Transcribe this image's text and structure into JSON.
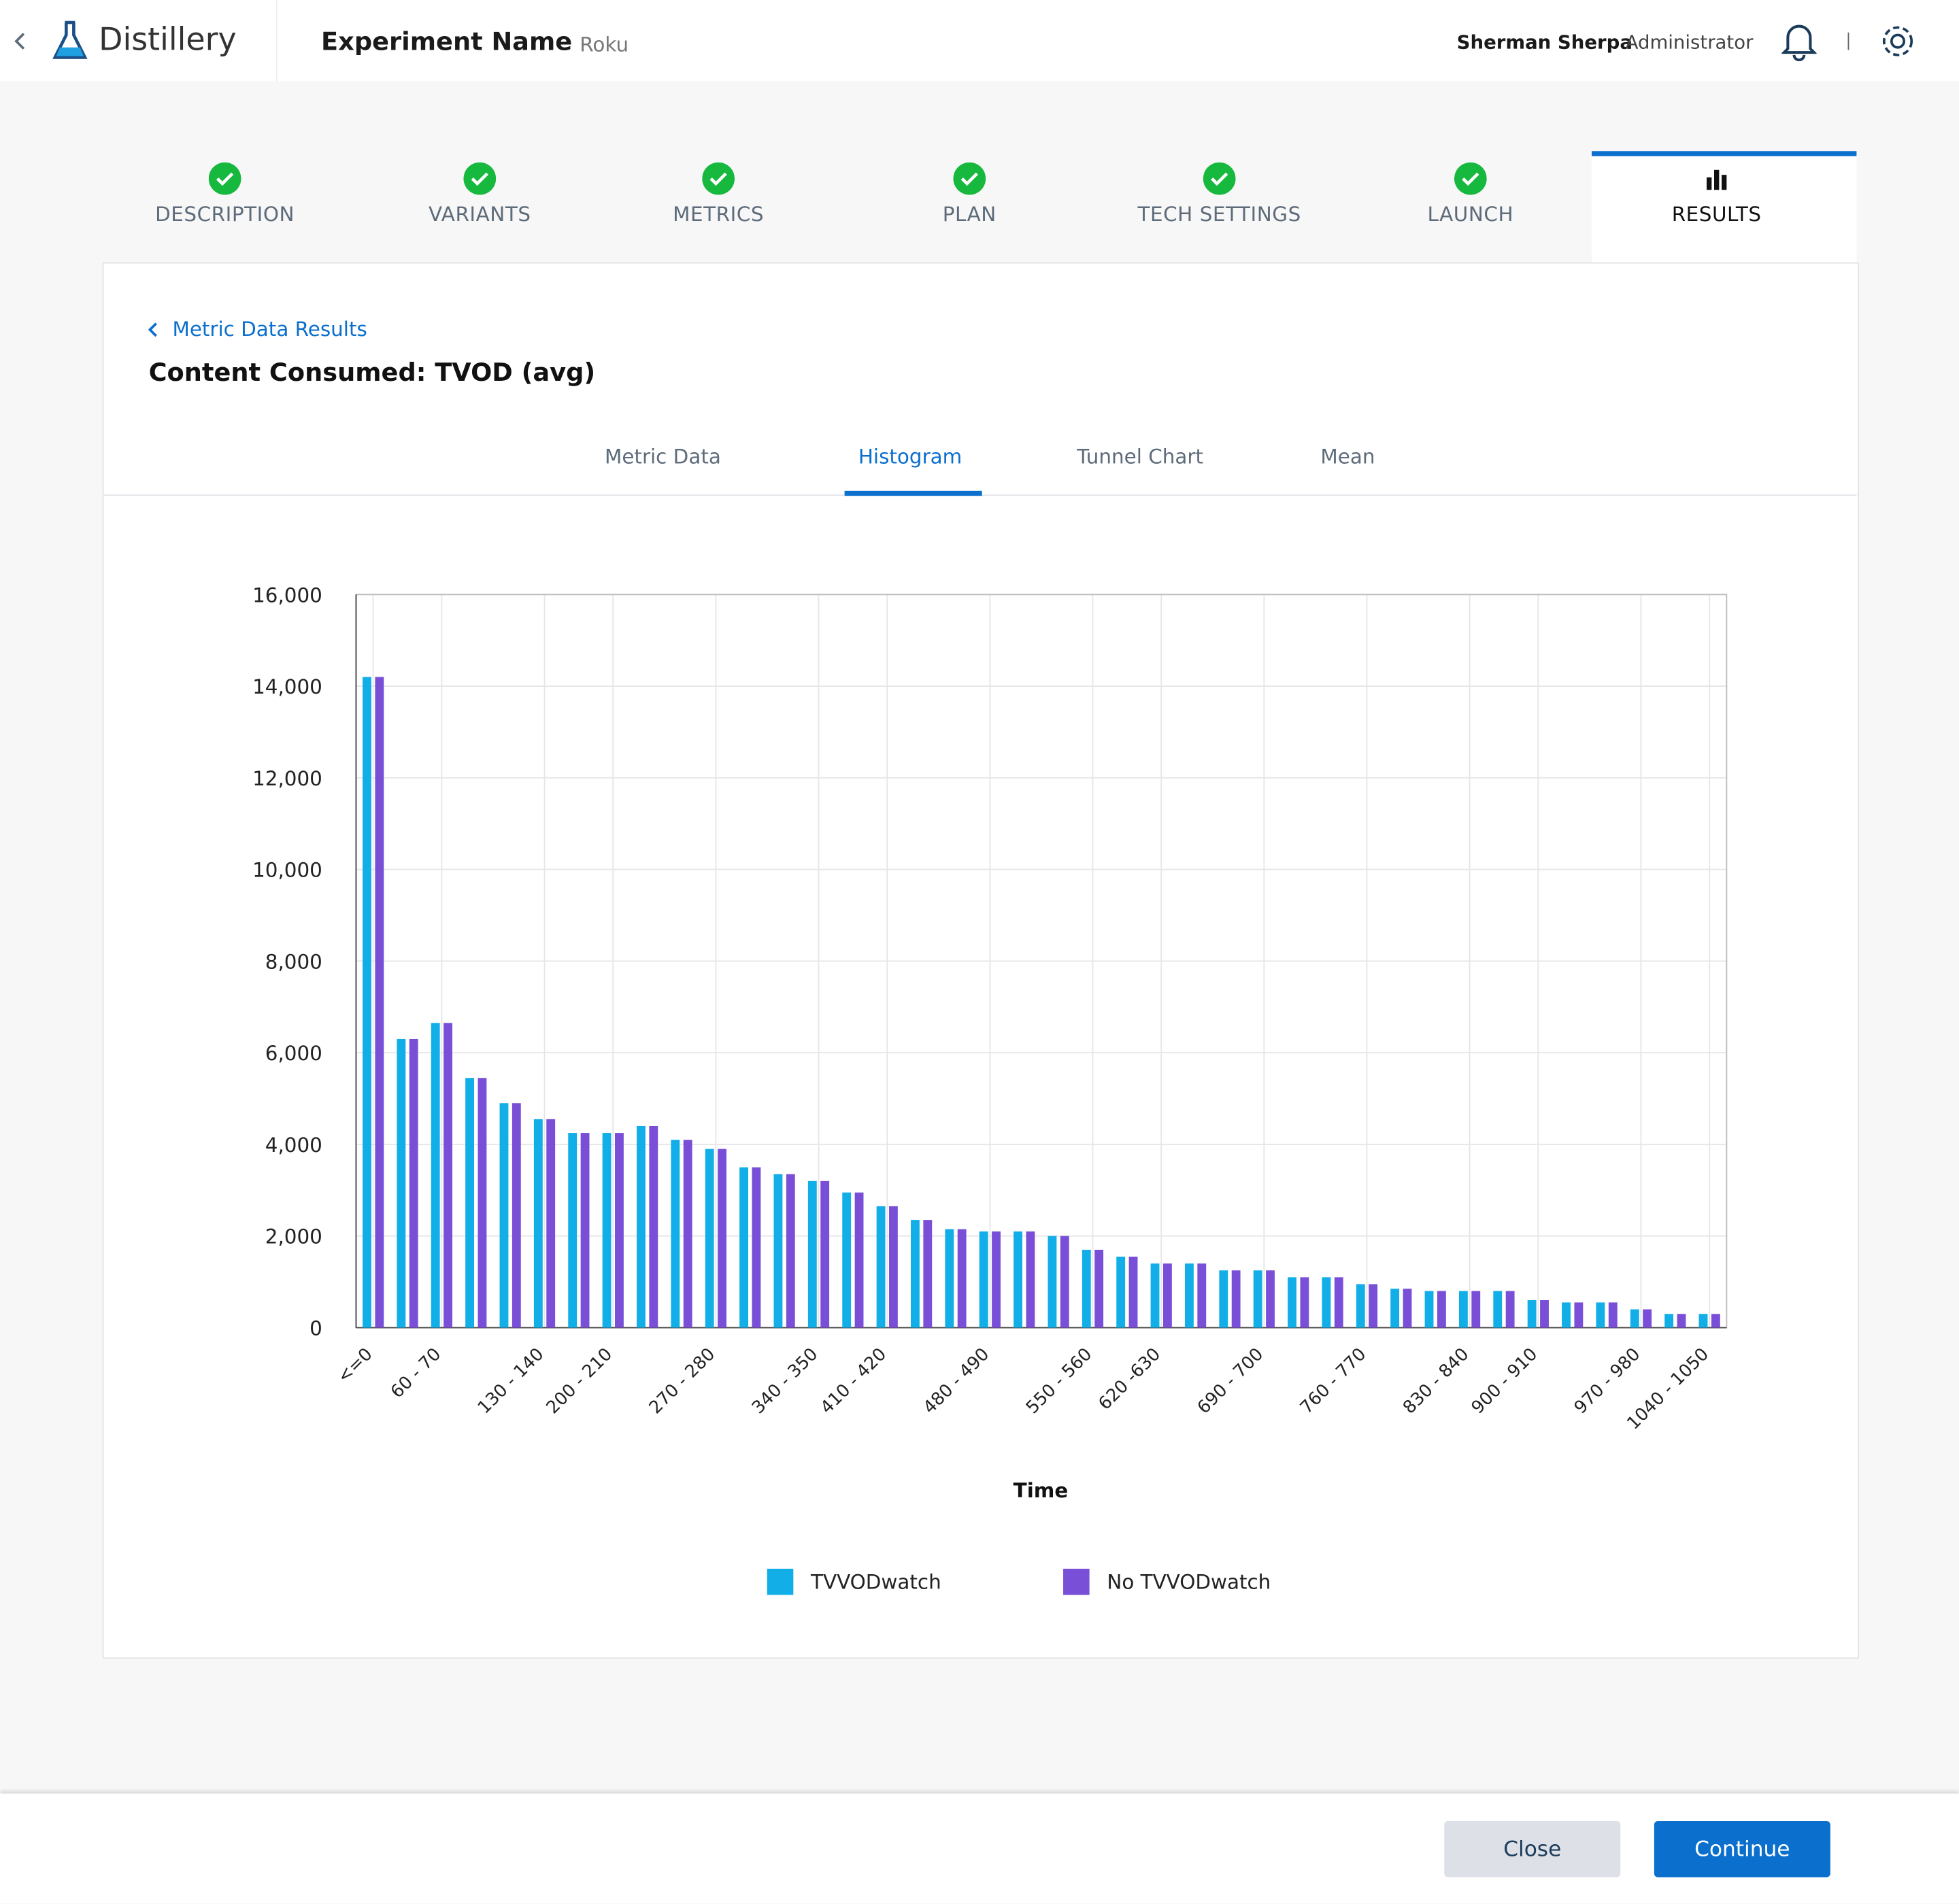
{
  "header": {
    "app_name": "Distillery",
    "experiment_name": "Experiment Name",
    "platform": "Roku",
    "user_name": "Sherman Sherpa",
    "user_role": "Administrator"
  },
  "steps": [
    "DESCRIPTION",
    "VARIANTS",
    "METRICS",
    "PLAN",
    "TECH SETTINGS",
    "LAUNCH",
    "RESULTS"
  ],
  "breadcrumb": "Metric Data Results",
  "page_title": "Content Consumed: TVOD (avg)",
  "subtabs": [
    "Metric Data",
    "Histogram",
    "Tunnel Chart",
    "Mean"
  ],
  "chart_data": {
    "type": "bar",
    "x_label": "Time",
    "categories": [
      "<=0",
      null,
      "60 - 70",
      null,
      null,
      "130 - 140",
      null,
      "200 - 210",
      null,
      null,
      "270 - 280",
      null,
      null,
      "340 - 350",
      null,
      "410 - 420",
      null,
      null,
      "480 - 490",
      null,
      null,
      "550 - 560",
      null,
      "620 -630",
      null,
      null,
      "690 - 700",
      null,
      null,
      "760 - 770",
      null,
      null,
      "830 - 840",
      null,
      "900 - 910",
      null,
      null,
      "970 - 980",
      null,
      "1040 - 1050"
    ],
    "series": [
      {
        "name": "TVVODwatch",
        "color": "#12aee8",
        "values": [
          14200,
          6300,
          6650,
          5450,
          4900,
          4550,
          4250,
          4250,
          4400,
          4100,
          3900,
          3500,
          3350,
          3200,
          2950,
          2650,
          2350,
          2150,
          2100,
          2100,
          2000,
          1700,
          1550,
          1400,
          1400,
          1250,
          1250,
          1100,
          1100,
          950,
          850,
          800,
          800,
          800,
          600,
          550,
          550,
          400,
          300,
          300
        ]
      },
      {
        "name": "No TVVODwatch",
        "color": "#7a4fd8",
        "values": [
          14200,
          6300,
          6650,
          5450,
          4900,
          4550,
          4250,
          4250,
          4400,
          4100,
          3900,
          3500,
          3350,
          3200,
          2950,
          2650,
          2350,
          2150,
          2100,
          2100,
          2000,
          1700,
          1550,
          1400,
          1400,
          1250,
          1250,
          1100,
          1100,
          950,
          850,
          800,
          800,
          800,
          600,
          550,
          550,
          400,
          300,
          300
        ]
      }
    ],
    "ylim": [
      0,
      16000
    ],
    "yticks": [
      0,
      {
        "value": 2000,
        "label": "2,000"
      },
      {
        "value": 4000,
        "label": "4,000"
      },
      {
        "value": 6000,
        "label": "6,000"
      },
      {
        "value": 8000,
        "label": "8,000"
      },
      {
        "value": 10000,
        "label": "10,000"
      },
      {
        "value": 12000,
        "label": "12,000"
      },
      {
        "value": 14000,
        "label": "14,000"
      },
      {
        "value": 16000,
        "label": "16,000"
      }
    ],
    "grid": true
  },
  "footer": {
    "close": "Close",
    "continue": "Continue"
  }
}
